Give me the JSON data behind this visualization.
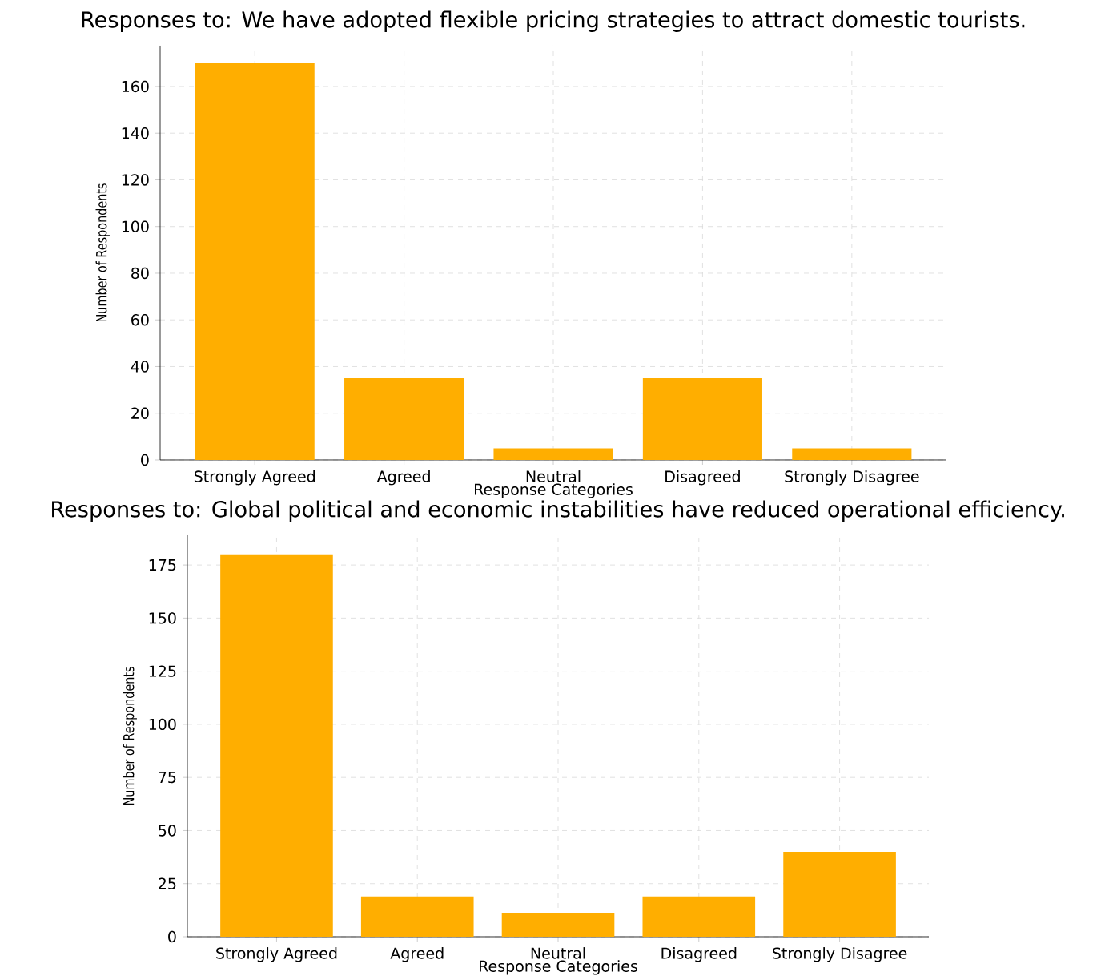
{
  "chart_data": [
    {
      "type": "bar",
      "title": "Responses to: We have adopted flexible pricing strategies to attract domestic tourists.",
      "xlabel": "Response Categories",
      "ylabel": "Number of Respondents",
      "categories": [
        "Strongly Agreed",
        "Agreed",
        "Neutral",
        "Disagreed",
        "Strongly Disagree"
      ],
      "values": [
        170,
        35,
        5,
        35,
        5
      ],
      "color": "#ffae00",
      "ylim": [
        0,
        177.5
      ],
      "yticks": [
        0,
        20,
        40,
        60,
        80,
        100,
        120,
        140,
        160
      ],
      "grid": true
    },
    {
      "type": "bar",
      "title": "Responses to: Global political and economic instabilities have reduced operational efficiency.",
      "xlabel": "Response Categories",
      "ylabel": "Number of Respondents",
      "categories": [
        "Strongly Agreed",
        "Agreed",
        "Neutral",
        "Disagreed",
        "Strongly Disagree"
      ],
      "values": [
        180,
        19,
        11,
        19,
        40
      ],
      "color": "#ffae00",
      "ylim": [
        0,
        189
      ],
      "yticks": [
        0,
        25,
        50,
        75,
        100,
        125,
        150,
        175
      ],
      "grid": true
    }
  ]
}
